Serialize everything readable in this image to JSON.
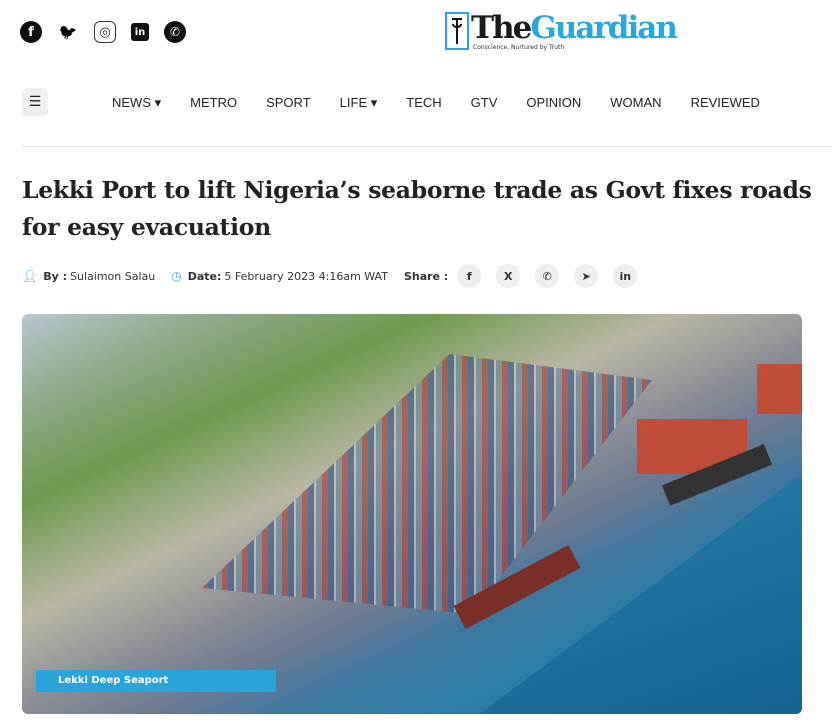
{
  "social": [
    {
      "icon": "facebook-icon",
      "glyph": "f"
    },
    {
      "icon": "twitter-icon",
      "glyph": "🐦"
    },
    {
      "icon": "instagram-icon",
      "glyph": "◎"
    },
    {
      "icon": "linkedin-icon",
      "glyph": "in"
    },
    {
      "icon": "whatsapp-icon",
      "glyph": "✆"
    }
  ],
  "logo": {
    "the": "The",
    "guardian": "Guardian",
    "tagline": "Conscience, Nurtured by Truth"
  },
  "nav": {
    "menu_icon": "☰",
    "items": [
      "NEWS ▾",
      "METRO",
      "SPORT",
      "LIFE ▾",
      "TECH",
      "GTV",
      "OPINION",
      "WOMAN",
      "REVIEWED"
    ]
  },
  "article": {
    "title": "Lekki Port to lift Nigeria’s seaborne trade as Govt fixes roads for easy evacuation",
    "by_label": "By :",
    "author": "Sulaimon Salau",
    "date_label": "Date:",
    "date": "5 February 2023 4:16am WAT",
    "share_label": "Share :",
    "share": [
      {
        "icon": "facebook-icon",
        "glyph": "f"
      },
      {
        "icon": "x-icon",
        "glyph": "X"
      },
      {
        "icon": "whatsapp-icon",
        "glyph": "✆"
      },
      {
        "icon": "telegram-icon",
        "glyph": "➤"
      },
      {
        "icon": "linkedin-icon",
        "glyph": "in"
      }
    ],
    "image_caption": "Lekki Deep Seaport"
  },
  "colors": {
    "brand": "#29a8e0"
  }
}
